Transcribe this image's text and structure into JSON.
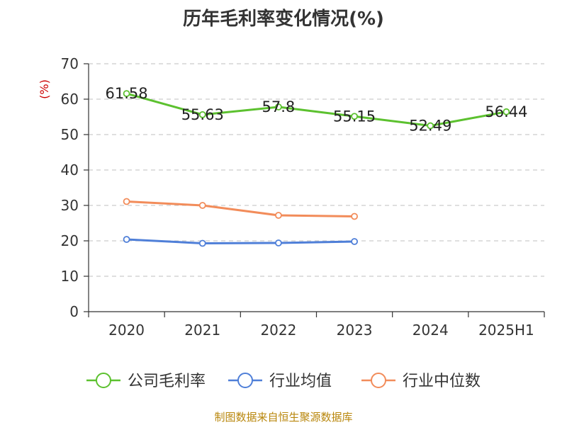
{
  "chart_data": {
    "type": "line",
    "title": "历年毛利率变化情况(%)",
    "ylabel": "(%)",
    "xlabel": "",
    "categories": [
      "2020",
      "2021",
      "2022",
      "2023",
      "2024",
      "2025H1"
    ],
    "ylim": [
      0,
      70
    ],
    "yticks": [
      0,
      10,
      20,
      30,
      40,
      50,
      60,
      70
    ],
    "grid": true,
    "legend": "bottom",
    "series": [
      {
        "name": "公司毛利率",
        "color": "#5cc12f",
        "values": [
          61.58,
          55.63,
          57.8,
          55.15,
          52.49,
          56.44
        ],
        "labels": [
          "61.58",
          "55.63",
          "57.8",
          "55.15",
          "52.49",
          "56.44"
        ]
      },
      {
        "name": "行业均值",
        "color": "#4f7fd8",
        "values": [
          20.4,
          19.3,
          19.4,
          19.8,
          null,
          null
        ]
      },
      {
        "name": "行业中位数",
        "color": "#f28c5a",
        "values": [
          31.1,
          30.0,
          27.2,
          26.9,
          null,
          null
        ]
      }
    ]
  },
  "source": "制图数据来自恒生聚源数据库",
  "colors": {
    "axis": "#333333",
    "grid": "#cccccc",
    "ylabel": "#cc0000",
    "source": "#b8860b"
  }
}
